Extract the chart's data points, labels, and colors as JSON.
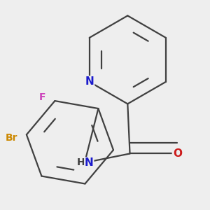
{
  "bg_color": "#eeeeee",
  "bond_color": "#404040",
  "bond_width": 1.6,
  "atom_colors": {
    "N": "#1a1acc",
    "O": "#cc1a1a",
    "F": "#cc44bb",
    "Br": "#cc8800"
  },
  "atom_fontsizes": {
    "N": 11,
    "O": 11,
    "F": 10,
    "Br": 10,
    "NH": 11
  }
}
